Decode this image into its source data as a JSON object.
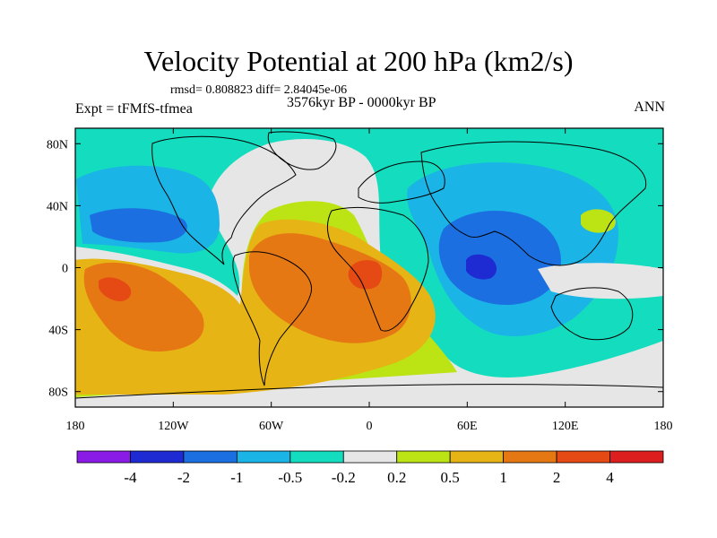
{
  "chart_data": {
    "type": "heatmap",
    "title": "Velocity Potential at 200 hPa (km2/s)",
    "stats_line": "rmsd= 0.808823 diff= 2.84045e-06",
    "period": "3576kyr BP - 0000kyr BP",
    "experiment": "Expt = tFMfS-tfmea",
    "season": "ANN",
    "x_range": [
      -180,
      180
    ],
    "y_range": [
      -90,
      90
    ],
    "x_ticks": [
      {
        "value": -180,
        "label": "180"
      },
      {
        "value": -120,
        "label": "120W"
      },
      {
        "value": -60,
        "label": "60W"
      },
      {
        "value": 0,
        "label": "0"
      },
      {
        "value": 60,
        "label": "60E"
      },
      {
        "value": 120,
        "label": "120E"
      },
      {
        "value": 180,
        "label": "180"
      }
    ],
    "y_ticks": [
      {
        "value": 80,
        "label": "80N"
      },
      {
        "value": 40,
        "label": "40N"
      },
      {
        "value": 0,
        "label": "0"
      },
      {
        "value": -40,
        "label": "40S"
      },
      {
        "value": -80,
        "label": "80S"
      }
    ],
    "colorbar": {
      "colors": [
        "#8a1be6",
        "#1e2ad2",
        "#1c6fe0",
        "#1ab4e6",
        "#14dcbe",
        "#e6e6e6",
        "#bce314",
        "#e6b414",
        "#e67814",
        "#e64a14",
        "#dc1e1e"
      ],
      "labels": [
        "-4",
        "-2",
        "-1",
        "-0.5",
        "-0.2",
        "0.2",
        "0.5",
        "1",
        "2",
        "4"
      ]
    },
    "field_regions": [
      {
        "level": 4,
        "description": "background, -0.5 to -0.2"
      },
      {
        "level": 5,
        "description": "-0.2 to 0.2 band"
      },
      {
        "level": 6,
        "description": "0.2 to 0.5 over Atlantic / S. Ocean"
      },
      {
        "level": 7,
        "description": "0.5 to 1 over S. America / Atlantic / SE Pacific"
      },
      {
        "level": 8,
        "description": "1 to 2 cores"
      },
      {
        "level": 9,
        "description": "2 to 4 center over Brazil"
      },
      {
        "level": 3,
        "description": "-1 to -0.5 over N Pacific and Indian Ocean"
      },
      {
        "level": 2,
        "description": "-2 to -1 Indian Ocean core"
      },
      {
        "level": 1,
        "description": "-4 to -2 center near 75E, 0N"
      },
      {
        "level": 6,
        "description": "0.2 to 0.5 patch near Japan"
      }
    ]
  }
}
